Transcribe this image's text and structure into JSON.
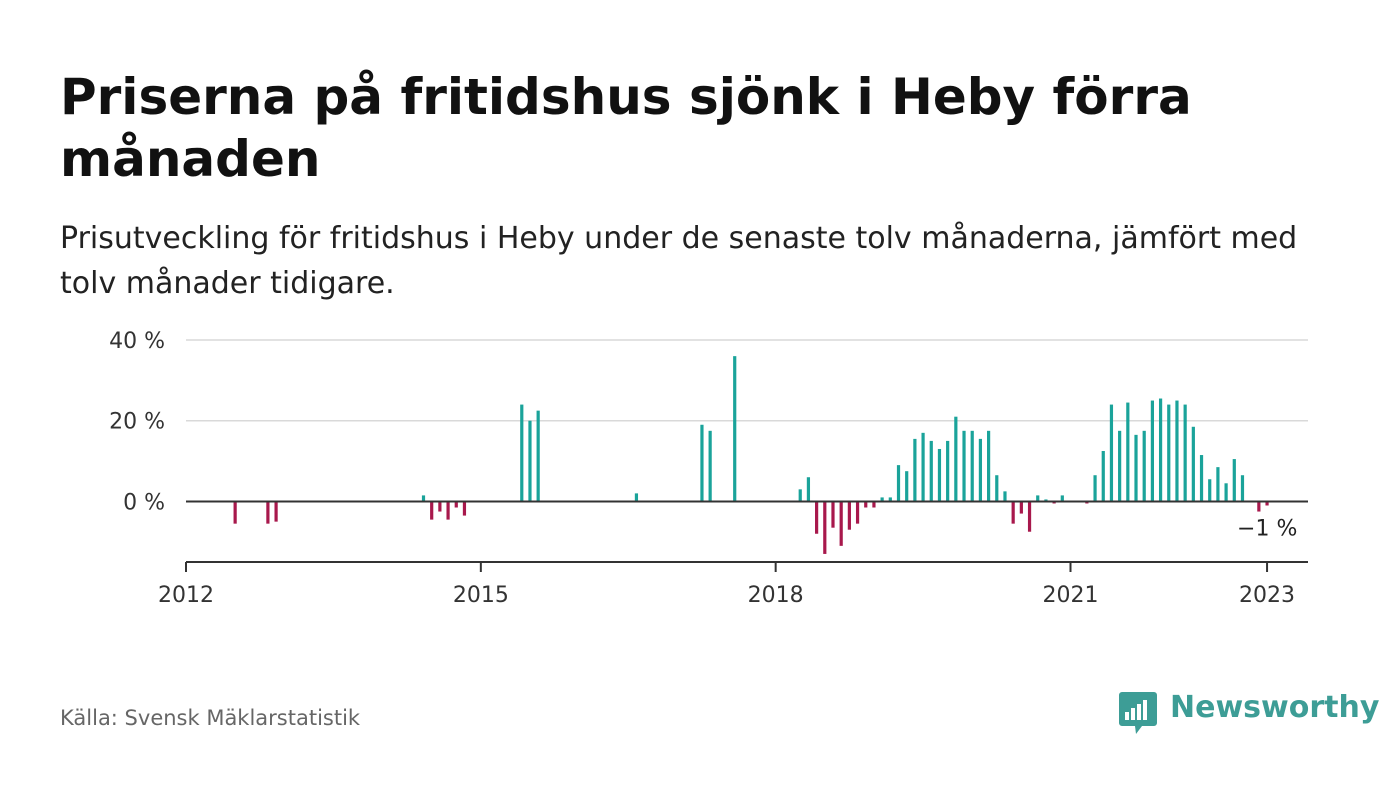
{
  "title": "Priserna på fritidshus sjönk i Heby förra månaden",
  "subtitle": "Prisutveckling för fritidshus i Heby under de senaste tolv månaderna, jämfört med tolv månader tidigare.",
  "source": "Källa: Svensk Mäklarstatistik",
  "brand": "Newsworthy",
  "colors": {
    "positive": "#1aa39a",
    "negative": "#a8184c",
    "brand": "#3d9d96",
    "grid": "#d9d9d9",
    "axis": "#333333"
  },
  "chart_data": {
    "type": "bar",
    "y_unit": "%",
    "ylim": [
      -15,
      40
    ],
    "y_ticks": [
      {
        "value": 40,
        "label": "40 %"
      },
      {
        "value": 20,
        "label": "20 %"
      },
      {
        "value": 0,
        "label": "0 %"
      }
    ],
    "x_range": [
      "2012-01",
      "2023-06"
    ],
    "x_ticks": [
      {
        "date": "2012-01",
        "label": "2012"
      },
      {
        "date": "2015-01",
        "label": "2015"
      },
      {
        "date": "2018-01",
        "label": "2018"
      },
      {
        "date": "2021-01",
        "label": "2021"
      },
      {
        "date": "2023-01",
        "label": "2023"
      }
    ],
    "grid": "horizontal",
    "last_value_label": "−1 %",
    "values": [
      [
        "2012-07",
        -5.5
      ],
      [
        "2012-11",
        -5.5
      ],
      [
        "2012-12",
        -5
      ],
      [
        "2014-06",
        1.5
      ],
      [
        "2014-07",
        -4.5
      ],
      [
        "2014-08",
        -2.5
      ],
      [
        "2014-09",
        -4.5
      ],
      [
        "2014-10",
        -1.5
      ],
      [
        "2014-11",
        -3.5
      ],
      [
        "2015-06",
        24
      ],
      [
        "2015-07",
        20
      ],
      [
        "2015-08",
        22.5
      ],
      [
        "2016-08",
        2
      ],
      [
        "2017-04",
        19
      ],
      [
        "2017-05",
        17.5
      ],
      [
        "2017-08",
        36
      ],
      [
        "2018-04",
        3
      ],
      [
        "2018-05",
        6
      ],
      [
        "2018-06",
        -8
      ],
      [
        "2018-07",
        -13
      ],
      [
        "2018-08",
        -6.5
      ],
      [
        "2018-09",
        -11
      ],
      [
        "2018-10",
        -7
      ],
      [
        "2018-11",
        -5.5
      ],
      [
        "2018-12",
        -1.5
      ],
      [
        "2019-01",
        -1.5
      ],
      [
        "2019-02",
        1
      ],
      [
        "2019-03",
        1
      ],
      [
        "2019-04",
        9
      ],
      [
        "2019-05",
        7.5
      ],
      [
        "2019-06",
        15.5
      ],
      [
        "2019-07",
        17
      ],
      [
        "2019-08",
        15
      ],
      [
        "2019-09",
        13
      ],
      [
        "2019-10",
        15
      ],
      [
        "2019-11",
        21
      ],
      [
        "2019-12",
        17.5
      ],
      [
        "2020-01",
        17.5
      ],
      [
        "2020-02",
        15.5
      ],
      [
        "2020-03",
        17.5
      ],
      [
        "2020-04",
        6.5
      ],
      [
        "2020-05",
        2.5
      ],
      [
        "2020-06",
        -5.5
      ],
      [
        "2020-07",
        -3
      ],
      [
        "2020-08",
        -7.5
      ],
      [
        "2020-09",
        1.5
      ],
      [
        "2020-10",
        0.5
      ],
      [
        "2020-11",
        -0.5
      ],
      [
        "2020-12",
        1.5
      ],
      [
        "2021-03",
        -0.5
      ],
      [
        "2021-04",
        6.5
      ],
      [
        "2021-05",
        12.5
      ],
      [
        "2021-06",
        24
      ],
      [
        "2021-07",
        17.5
      ],
      [
        "2021-08",
        24.5
      ],
      [
        "2021-09",
        16.5
      ],
      [
        "2021-10",
        17.5
      ],
      [
        "2021-11",
        25
      ],
      [
        "2021-12",
        25.5
      ],
      [
        "2022-01",
        24
      ],
      [
        "2022-02",
        25
      ],
      [
        "2022-03",
        24
      ],
      [
        "2022-04",
        18.5
      ],
      [
        "2022-05",
        11.5
      ],
      [
        "2022-06",
        5.5
      ],
      [
        "2022-07",
        8.5
      ],
      [
        "2022-08",
        4.5
      ],
      [
        "2022-09",
        10.5
      ],
      [
        "2022-10",
        6.5
      ],
      [
        "2022-11",
        0
      ],
      [
        "2022-12",
        -2.5
      ],
      [
        "2023-01",
        -1
      ]
    ]
  }
}
